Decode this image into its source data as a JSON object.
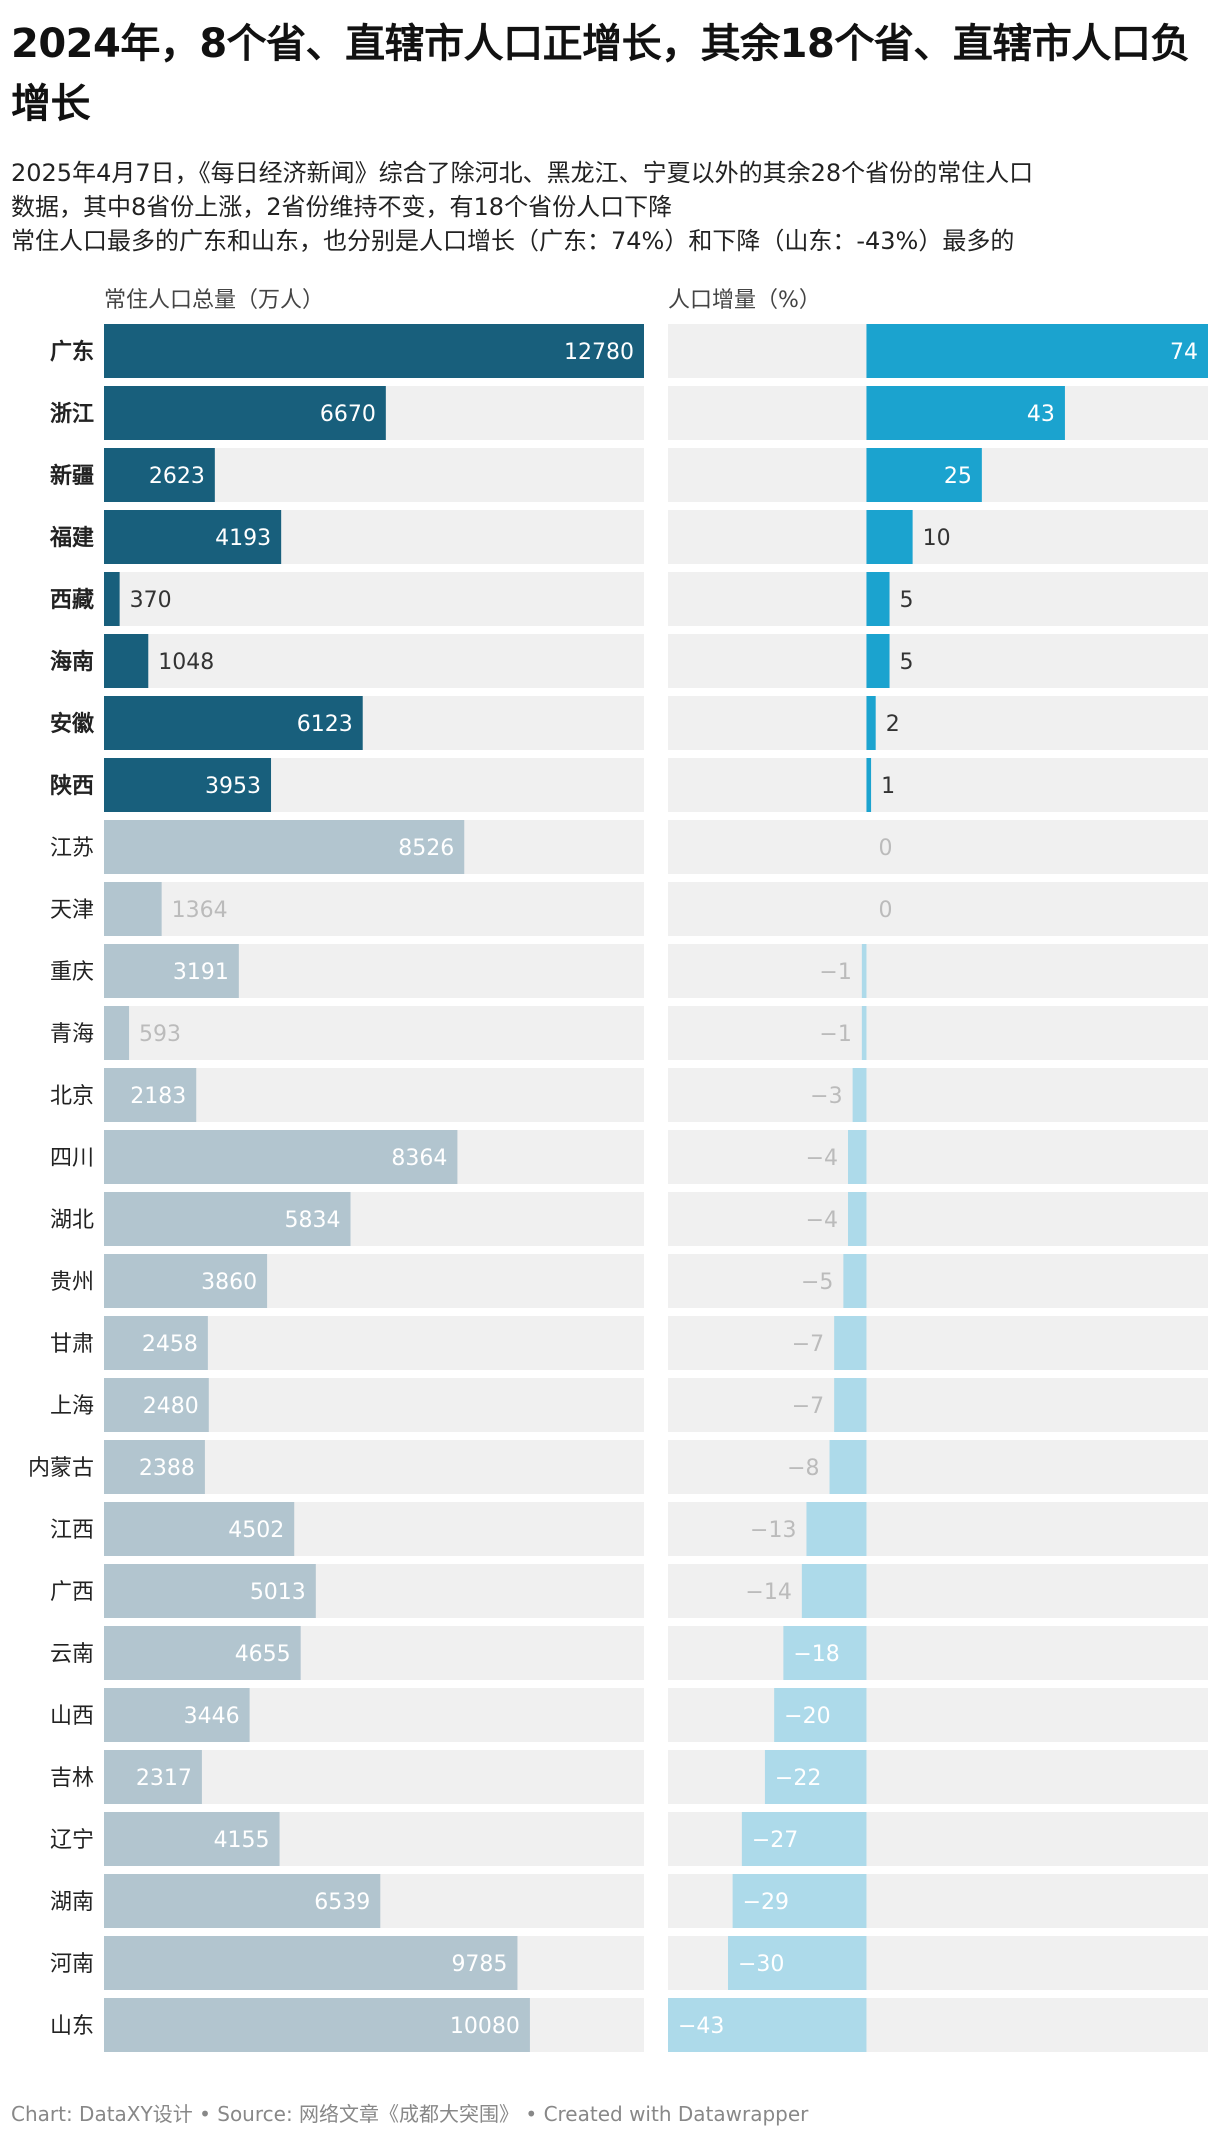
{
  "title": "2024年，8个省、直辖市人口正增长，其余18个省、直辖市人口负增长",
  "subtitle_lines": [
    "2025年4月7日，《每日经济新闻》综合了除河北、黑龙江、宁夏以外的其余28个省份的常住人口",
    "数据，其中8省份上涨，2省份维持不变，有18个省份人口下降",
    "常住人口最多的广东和山东，也分别是人口增长（广东：74%）和下降（山东：-43%）最多的"
  ],
  "footer": {
    "chart": "Chart: DataXY设计",
    "sep1": " • ",
    "source": "Source: 网络文章《成都大突围》",
    "sep2": " • ",
    "created": "Created with Datawrapper"
  },
  "colors": {
    "pop_highlight": "#185f7c",
    "pop_normal": "#b2c5cf",
    "chg_highlight": "#1ba3cf",
    "chg_normal": "#addaea",
    "track": "#f0f0f0",
    "label_dark": "#333333",
    "label_light": "#bbbbbb"
  },
  "chart_data": [
    {
      "type": "bar",
      "orientation": "horizontal",
      "title": "常住人口总量（万人）",
      "xlim": [
        0,
        12780
      ],
      "categories": [
        "广东",
        "浙江",
        "新疆",
        "福建",
        "西藏",
        "海南",
        "安徽",
        "陕西",
        "江苏",
        "天津",
        "重庆",
        "青海",
        "北京",
        "四川",
        "湖北",
        "贵州",
        "甘肃",
        "上海",
        "内蒙古",
        "江西",
        "广西",
        "云南",
        "山西",
        "吉林",
        "辽宁",
        "湖南",
        "河南",
        "山东"
      ],
      "highlighted": [
        "广东",
        "浙江",
        "新疆",
        "福建",
        "西藏",
        "海南",
        "安徽",
        "陕西"
      ],
      "values": [
        12780,
        6670,
        2623,
        4193,
        370,
        1048,
        6123,
        3953,
        8526,
        1364,
        3191,
        593,
        2183,
        8364,
        5834,
        3860,
        2458,
        2480,
        2388,
        4502,
        5013,
        4655,
        3446,
        2317,
        4155,
        6539,
        9785,
        10080
      ],
      "value_labels": [
        "12780",
        "6670",
        "2623",
        "4193",
        "370",
        "1048",
        "6123",
        "3953",
        "8526",
        "1364",
        "3191",
        "593",
        "2183",
        "8364",
        "5834",
        "3860",
        "2458",
        "2480",
        "2388",
        "4502",
        "5013",
        "4655",
        "3446",
        "2317",
        "4155",
        "6539",
        "9785",
        "10080"
      ]
    },
    {
      "type": "bar",
      "orientation": "horizontal",
      "title": "人口增量（%）",
      "xlim": [
        -43,
        74
      ],
      "categories": [
        "广东",
        "浙江",
        "新疆",
        "福建",
        "西藏",
        "海南",
        "安徽",
        "陕西",
        "江苏",
        "天津",
        "重庆",
        "青海",
        "北京",
        "四川",
        "湖北",
        "贵州",
        "甘肃",
        "上海",
        "内蒙古",
        "江西",
        "广西",
        "云南",
        "山西",
        "吉林",
        "辽宁",
        "湖南",
        "河南",
        "山东"
      ],
      "values": [
        74,
        43,
        25,
        10,
        5,
        5,
        2,
        1,
        0,
        0,
        -1,
        -1,
        -3,
        -4,
        -4,
        -5,
        -7,
        -7,
        -8,
        -13,
        -14,
        -18,
        -20,
        -22,
        -27,
        -29,
        -30,
        -43
      ],
      "value_labels": [
        "74",
        "43",
        "25",
        "10",
        "5",
        "5",
        "2",
        "1",
        "0",
        "0",
        "−1",
        "−1",
        "−3",
        "−4",
        "−4",
        "−5",
        "−7",
        "−7",
        "−8",
        "−13",
        "−14",
        "−18",
        "−20",
        "−22",
        "−27",
        "−29",
        "−30",
        "−43"
      ]
    }
  ]
}
